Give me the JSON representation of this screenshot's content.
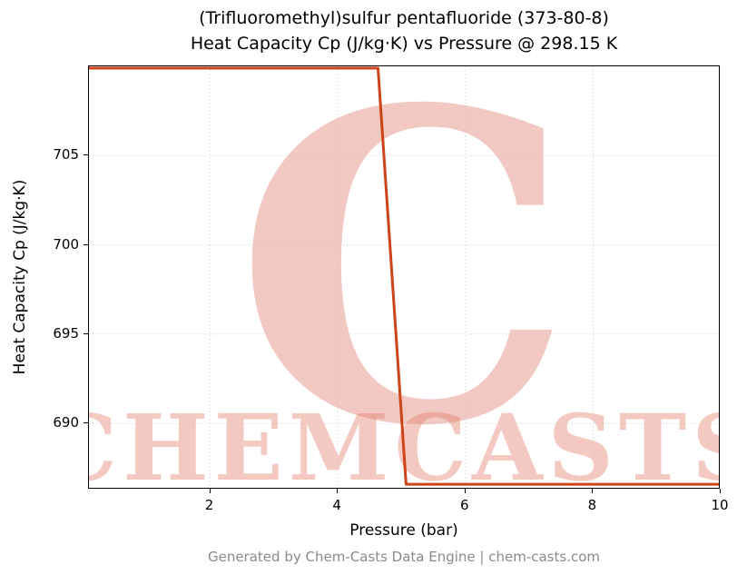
{
  "title_line1": "(Trifluoromethyl)sulfur pentafluoride (373-80-8)",
  "title_line2": "Heat Capacity Cp (J/kg·K) vs Pressure @ 298.15 K",
  "footer": "Generated by Chem-Casts Data Engine | chem-casts.com",
  "watermark": {
    "letter": "C",
    "text": "CHEMCASTS",
    "logo_color": "#d24c3a",
    "text_color": "#e5806e"
  },
  "chart_data": {
    "type": "line",
    "title": "(Trifluoromethyl)sulfur pentafluoride (373-80-8)\nHeat Capacity Cp (J/kg·K) vs Pressure @ 298.15 K",
    "xlabel": "Pressure (bar)",
    "ylabel": "Heat Capacity Cp (J/kg·K)",
    "xlim": [
      0.1,
      10
    ],
    "ylim": [
      686.3,
      710.0
    ],
    "xticks": [
      2,
      4,
      6,
      8,
      10
    ],
    "yticks": [
      690,
      695,
      700,
      705
    ],
    "grid": true,
    "grid_style": "dotted",
    "grid_color": "#c9c9c9",
    "line_color": "#cc4418",
    "legend": false,
    "series": [
      {
        "x": [
          0.1,
          4.63,
          5.07,
          10.0
        ],
        "y": [
          709.9,
          709.9,
          686.6,
          686.6
        ]
      }
    ]
  }
}
